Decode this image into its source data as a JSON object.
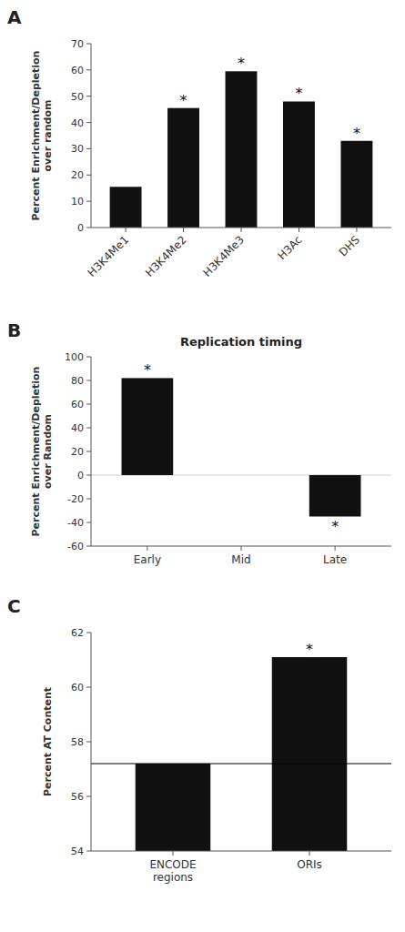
{
  "chart_data": [
    {
      "type": "bar",
      "label": "A",
      "categories": [
        "H3K4Me1",
        "H3K4Me2",
        "H3K4Me3",
        "H3Ac",
        "DHS"
      ],
      "values": [
        15.5,
        45.5,
        59.5,
        48.0,
        33.0
      ],
      "color": "#111111",
      "ylabel": "Percent Enrichment/Depletion\nover random",
      "ylim": [
        0,
        70
      ],
      "yticks": [
        0,
        10,
        20,
        30,
        40,
        50,
        60,
        70
      ],
      "annotations": [
        {
          "text": "*",
          "category": "H3K4Me2"
        },
        {
          "text": "*",
          "category": "H3K4Me3"
        },
        {
          "text": "*",
          "category": "H3Ac"
        },
        {
          "text": "*",
          "category": "DHS"
        }
      ]
    },
    {
      "type": "bar",
      "label": "B",
      "title": "Replication timing",
      "categories": [
        "Early",
        "Mid",
        "Late"
      ],
      "values": [
        82.0,
        0.0,
        -35.0
      ],
      "color": "#111111",
      "ylabel": "Percent Enrichment/Depletion\nover Random",
      "ylim": [
        -60,
        100
      ],
      "yticks": [
        -60,
        -40,
        -20,
        0,
        20,
        40,
        60,
        80,
        100
      ],
      "annotations": [
        {
          "text": "*",
          "category": "Early"
        },
        {
          "text": "*",
          "category": "Late"
        }
      ]
    },
    {
      "type": "bar",
      "label": "C",
      "categories": [
        "ENCODE\nregions",
        "ORIs"
      ],
      "values": [
        57.2,
        61.1
      ],
      "color": "#111111",
      "ylabel": "Percent AT Content",
      "ylim": [
        54,
        62
      ],
      "yticks": [
        54,
        56,
        58,
        60,
        62
      ],
      "hline": 57.2,
      "annotations": [
        {
          "text": "*",
          "category": "ORIs"
        }
      ]
    }
  ]
}
